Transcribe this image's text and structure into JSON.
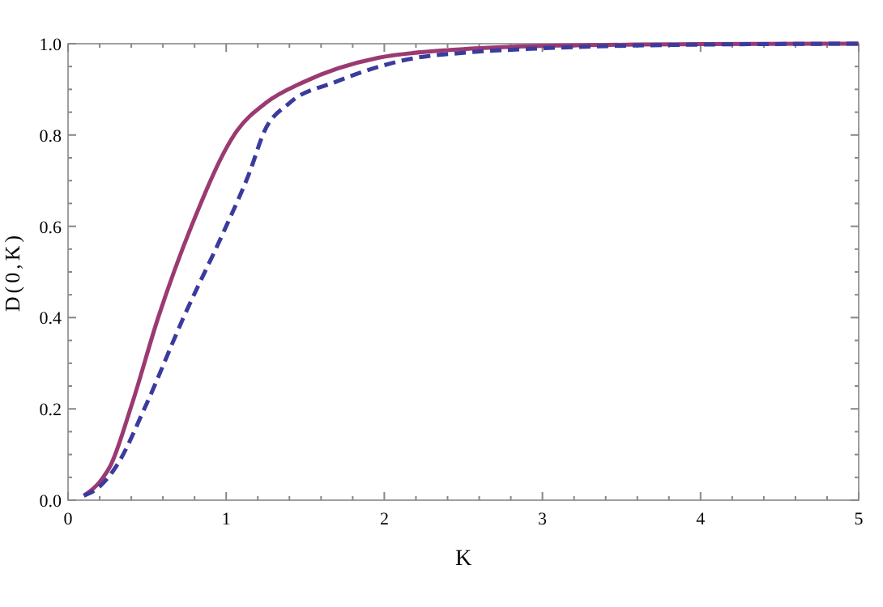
{
  "chart_data": {
    "type": "line",
    "xlabel": "K",
    "ylabel": "D(0,K)",
    "xlim": [
      0,
      5
    ],
    "ylim": [
      0,
      1
    ],
    "xticks": [
      0,
      {
        "value": 0.2,
        "label": null
      },
      {
        "value": 0.4,
        "label": null
      },
      {
        "value": 0.6,
        "label": null
      },
      {
        "value": 0.8,
        "label": null
      },
      1,
      {
        "value": 1.2,
        "label": null
      },
      {
        "value": 1.4,
        "label": null
      },
      {
        "value": 1.6,
        "label": null
      },
      {
        "value": 1.8,
        "label": null
      },
      2,
      {
        "value": 2.2,
        "label": null
      },
      {
        "value": 2.4,
        "label": null
      },
      {
        "value": 2.6,
        "label": null
      },
      {
        "value": 2.8,
        "label": null
      },
      3,
      {
        "value": 3.2,
        "label": null
      },
      {
        "value": 3.4,
        "label": null
      },
      {
        "value": 3.6,
        "label": null
      },
      {
        "value": 3.8,
        "label": null
      },
      4,
      {
        "value": 4.2,
        "label": null
      },
      {
        "value": 4.4,
        "label": null
      },
      {
        "value": 4.6,
        "label": null
      },
      {
        "value": 4.8,
        "label": null
      },
      5
    ],
    "yticks": [
      {
        "value": 0,
        "label": "0.0"
      },
      {
        "value": 0.05,
        "label": null
      },
      {
        "value": 0.1,
        "label": null
      },
      {
        "value": 0.15,
        "label": null
      },
      {
        "value": 0.2,
        "label": "0.2"
      },
      {
        "value": 0.25,
        "label": null
      },
      {
        "value": 0.3,
        "label": null
      },
      {
        "value": 0.35,
        "label": null
      },
      {
        "value": 0.4,
        "label": "0.4"
      },
      {
        "value": 0.45,
        "label": null
      },
      {
        "value": 0.5,
        "label": null
      },
      {
        "value": 0.55,
        "label": null
      },
      {
        "value": 0.6,
        "label": "0.6"
      },
      {
        "value": 0.65,
        "label": null
      },
      {
        "value": 0.7,
        "label": null
      },
      {
        "value": 0.75,
        "label": null
      },
      {
        "value": 0.8,
        "label": "0.8"
      },
      {
        "value": 0.85,
        "label": null
      },
      {
        "value": 0.9,
        "label": null
      },
      {
        "value": 0.95,
        "label": null
      },
      {
        "value": 1,
        "label": "1.0"
      }
    ],
    "grid": false,
    "marker": "none",
    "series": [
      {
        "color": "#9b3a72",
        "line_style": "solid",
        "x": [
          0.1,
          0.2,
          0.27,
          0.4,
          0.57,
          0.78,
          1.07,
          1.25,
          1.49,
          1.96,
          2.5,
          3,
          4,
          5
        ],
        "values": [
          0.01,
          0.04,
          0.077,
          0.206,
          0.4,
          0.6,
          0.81,
          0.87,
          0.916,
          0.969,
          0.988,
          0.995,
          0.999,
          1.0
        ]
      },
      {
        "color": "#3b3b9e",
        "line_style": "dashed",
        "x": [
          0.1,
          0.2,
          0.31,
          0.49,
          0.73,
          1.0,
          1.15,
          1.24,
          1.4,
          1.69,
          2.2,
          2.5,
          3,
          4,
          5
        ],
        "values": [
          0.01,
          0.03,
          0.077,
          0.206,
          0.4,
          0.6,
          0.72,
          0.807,
          0.87,
          0.916,
          0.969,
          0.98,
          0.99,
          0.998,
          1.0
        ]
      }
    ]
  }
}
